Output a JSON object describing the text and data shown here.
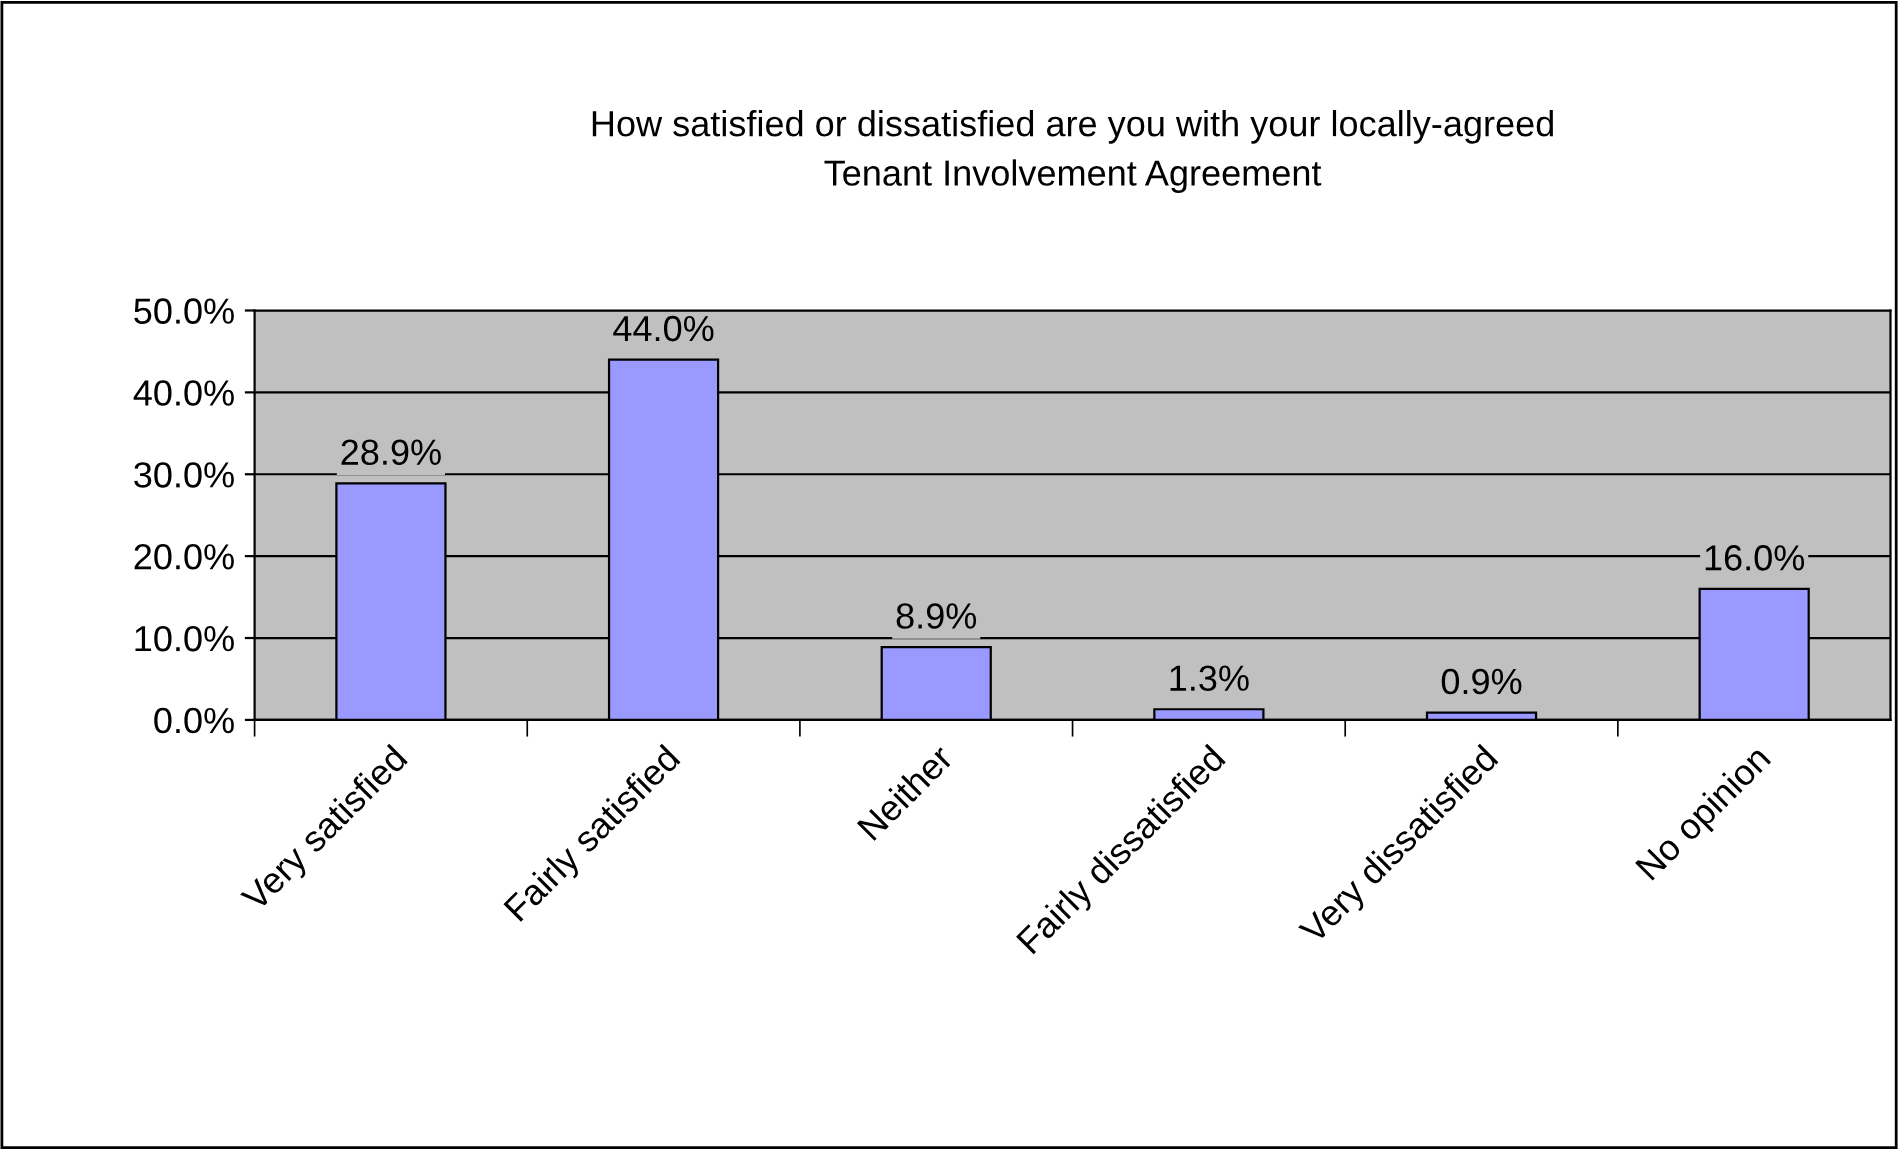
{
  "chart_data": {
    "type": "bar",
    "title": "How satisfied or dissatisfied are you with your locally-agreed\nTenant Involvement Agreement",
    "categories": [
      "Very satisfied",
      "Fairly satisfied",
      "Neither",
      "Fairly dissatisfied",
      "Very dissatisfied",
      "No opinion"
    ],
    "values": [
      28.9,
      44.0,
      8.9,
      1.3,
      0.9,
      16.0
    ],
    "value_labels": [
      "28.9%",
      "44.0%",
      "8.9%",
      "1.3%",
      "0.9%",
      "16.0%"
    ],
    "color": "#9999ff",
    "ylim": [
      0,
      50
    ],
    "yticks": [
      {
        "value": 0,
        "label": "0.0%"
      },
      {
        "value": 10,
        "label": "10.0%"
      },
      {
        "value": 20,
        "label": "20.0%"
      },
      {
        "value": 30,
        "label": "30.0%"
      },
      {
        "value": 40,
        "label": "40.0%"
      },
      {
        "value": 50,
        "label": "50.0%"
      }
    ],
    "grid": "y",
    "legend": false
  }
}
